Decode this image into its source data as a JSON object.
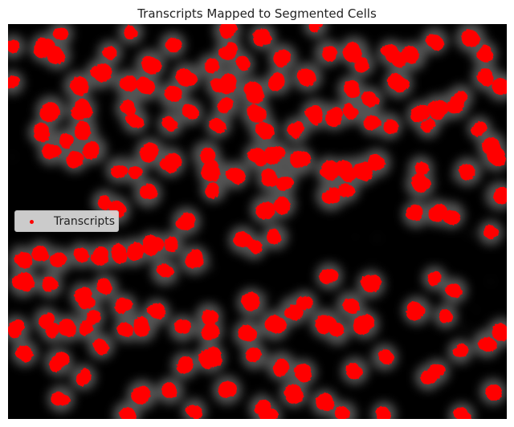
{
  "figure": {
    "title": "Transcripts Mapped to Segmented Cells"
  },
  "legend": {
    "label": "Transcripts"
  },
  "colors": {
    "background": "#000000",
    "transcripts": "#ff0000",
    "cell_glow": "#9a9a9a"
  }
}
